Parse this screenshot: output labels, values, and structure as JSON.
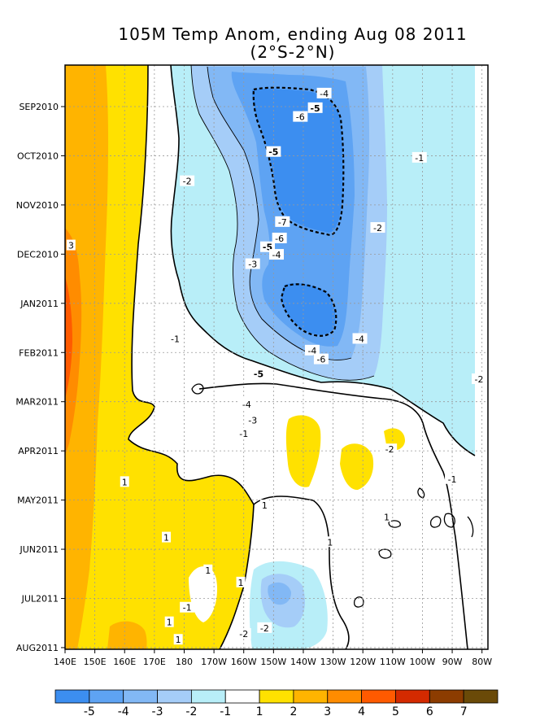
{
  "chart_data": {
    "type": "heatmap",
    "title": "105M Temp Anom, ending Aug 08 2011",
    "subtitle": "(2°S-2°N)",
    "x_tick_labels": [
      "140E",
      "150E",
      "160E",
      "170E",
      "180",
      "170W",
      "160W",
      "150W",
      "140W",
      "130W",
      "120W",
      "110W",
      "100W",
      "90W",
      "80W"
    ],
    "x_lon_east": [
      140,
      150,
      160,
      170,
      180,
      190,
      200,
      210,
      220,
      230,
      240,
      250,
      260,
      270,
      280
    ],
    "xlim": [
      140,
      282
    ],
    "y_tick_labels": [
      "SEP2010",
      "OCT2010",
      "NOV2010",
      "DEC2010",
      "JAN2011",
      "FEB2011",
      "MAR2011",
      "APR2011",
      "MAY2011",
      "JUN2011",
      "JUL2011",
      "AUG2011"
    ],
    "grid": true,
    "colorbar": {
      "labels": [
        "-5",
        "-4",
        "-3",
        "-2",
        "-1",
        "1",
        "2",
        "3",
        "4",
        "5",
        "6",
        "7"
      ],
      "colors": [
        "#3c8ef0",
        "#5ea3f3",
        "#82b8f5",
        "#a5cdf8",
        "#b8eef8",
        "#ffffff",
        "#ffe100",
        "#ffb400",
        "#ff8c00",
        "#ff5a00",
        "#d42a00",
        "#8c3c00",
        "#6a4a08"
      ]
    },
    "contour_labels": [
      {
        "text": "-4",
        "lon": 227,
        "t": 0.05
      },
      {
        "text": "-5",
        "lon": 224,
        "t": 0.075,
        "bold": true
      },
      {
        "text": "-6",
        "lon": 219,
        "t": 0.09
      },
      {
        "text": "-5",
        "lon": 210,
        "t": 0.15,
        "bold": true
      },
      {
        "text": "-1",
        "lon": 259,
        "t": 0.16
      },
      {
        "text": "-2",
        "lon": 181,
        "t": 0.2
      },
      {
        "text": "-7",
        "lon": 213,
        "t": 0.27
      },
      {
        "text": "-2",
        "lon": 245,
        "t": 0.28
      },
      {
        "text": "3",
        "lon": 142,
        "t": 0.31
      },
      {
        "text": "-6",
        "lon": 212,
        "t": 0.298
      },
      {
        "text": "-5",
        "lon": 208,
        "t": 0.313,
        "bold": true
      },
      {
        "text": "-4",
        "lon": 211,
        "t": 0.326
      },
      {
        "text": "-3",
        "lon": 203,
        "t": 0.342
      },
      {
        "text": "-1",
        "lon": 177,
        "t": 0.47
      },
      {
        "text": "-4",
        "lon": 239,
        "t": 0.47
      },
      {
        "text": "-4",
        "lon": 223,
        "t": 0.49
      },
      {
        "text": "-6",
        "lon": 226,
        "t": 0.505
      },
      {
        "text": "-5",
        "lon": 205,
        "t": 0.53,
        "bold": true
      },
      {
        "text": "-2",
        "lon": 279,
        "t": 0.539
      },
      {
        "text": "-4",
        "lon": 201,
        "t": 0.582
      },
      {
        "text": "-3",
        "lon": 203,
        "t": 0.609
      },
      {
        "text": "-1",
        "lon": 200,
        "t": 0.632
      },
      {
        "text": "-2",
        "lon": 249,
        "t": 0.659
      },
      {
        "text": "-1",
        "lon": 270,
        "t": 0.71
      },
      {
        "text": "1",
        "lon": 160,
        "t": 0.715
      },
      {
        "text": "1",
        "lon": 207,
        "t": 0.755
      },
      {
        "text": "1",
        "lon": 248,
        "t": 0.775
      },
      {
        "text": "1",
        "lon": 174,
        "t": 0.81
      },
      {
        "text": "1",
        "lon": 229,
        "t": 0.818
      },
      {
        "text": "1",
        "lon": 188,
        "t": 0.866
      },
      {
        "text": "1",
        "lon": 199,
        "t": 0.887
      },
      {
        "text": "-1",
        "lon": 181,
        "t": 0.93
      },
      {
        "text": "1",
        "lon": 175,
        "t": 0.955
      },
      {
        "text": "-2",
        "lon": 207,
        "t": 0.965
      },
      {
        "text": "1",
        "lon": 178,
        "t": 0.985
      },
      {
        "text": "-2",
        "lon": 200,
        "t": 0.975
      }
    ]
  }
}
